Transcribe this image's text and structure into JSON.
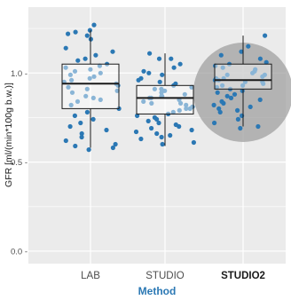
{
  "chart_data": {
    "type": "box",
    "xlabel": "Method",
    "ylabel": "GFR [ml/(min*100g b.w.)]",
    "categories": [
      "LAB",
      "STUDIO",
      "STUDIO2"
    ],
    "highlighted_category": "STUDIO2",
    "ylim": [
      -0.07,
      1.37
    ],
    "yticks": [
      0.0,
      0.5,
      1.0
    ],
    "ytick_labels": [
      "0.0 -",
      "0.5 -",
      "1.0 -"
    ],
    "grid": true,
    "boxes": [
      {
        "category": "LAB",
        "whisker_low": 0.58,
        "q1": 0.8,
        "median": 0.94,
        "q3": 1.05,
        "whisker_high": 1.24
      },
      {
        "category": "STUDIO",
        "whisker_low": 0.59,
        "q1": 0.77,
        "median": 0.86,
        "q3": 0.93,
        "whisker_high": 1.11
      },
      {
        "category": "STUDIO2",
        "whisker_low": 0.7,
        "q1": 0.91,
        "median": 0.96,
        "q3": 1.05,
        "whisker_high": 1.21
      }
    ],
    "points": [
      {
        "category": "LAB",
        "values": [
          1.24,
          1.27,
          1.22,
          1.23,
          1.21,
          1.19,
          1.14,
          1.12,
          1.1,
          1.08,
          1.07,
          1.05,
          1.04,
          1.03,
          1.02,
          1.01,
          1.0,
          0.99,
          0.98,
          0.97,
          0.96,
          0.95,
          0.94,
          0.93,
          0.92,
          0.91,
          0.9,
          0.89,
          0.87,
          0.86,
          0.85,
          0.84,
          0.82,
          0.8,
          0.78,
          0.76,
          0.74,
          0.72,
          0.7,
          0.68,
          0.66,
          0.64,
          0.62,
          0.6,
          0.59,
          0.58,
          0.57
        ]
      },
      {
        "category": "STUDIO",
        "values": [
          1.11,
          1.08,
          1.08,
          1.05,
          1.03,
          1.01,
          1.0,
          0.99,
          0.97,
          0.96,
          0.95,
          0.94,
          0.93,
          0.92,
          0.91,
          0.91,
          0.9,
          0.89,
          0.88,
          0.87,
          0.87,
          0.86,
          0.86,
          0.85,
          0.84,
          0.83,
          0.83,
          0.82,
          0.81,
          0.8,
          0.8,
          0.79,
          0.78,
          0.77,
          0.76,
          0.75,
          0.74,
          0.73,
          0.72,
          0.71,
          0.7,
          0.69,
          0.68,
          0.67,
          0.66,
          0.65,
          0.64,
          0.63,
          0.61,
          0.6
        ]
      },
      {
        "category": "STUDIO2",
        "values": [
          1.21,
          1.15,
          1.12,
          1.1,
          1.08,
          1.06,
          1.05,
          1.04,
          1.03,
          1.02,
          1.01,
          1.0,
          0.99,
          0.99,
          0.98,
          0.97,
          0.97,
          0.96,
          0.96,
          0.95,
          0.95,
          0.94,
          0.93,
          0.93,
          0.92,
          0.91,
          0.9,
          0.89,
          0.88,
          0.87,
          0.86,
          0.85,
          0.84,
          0.83,
          0.82,
          0.81,
          0.8,
          0.79,
          0.78,
          0.76,
          0.74,
          0.72,
          0.7,
          0.69
        ]
      }
    ],
    "colors": {
      "panel": "#ebebeb",
      "gridline": "#ffffff",
      "point": "#2b78b4",
      "box_line": "#1a1a1a",
      "box_fill": "#ffffff",
      "highlight_circle": "#a0a0a0",
      "method_title": "#2b78b4"
    }
  }
}
